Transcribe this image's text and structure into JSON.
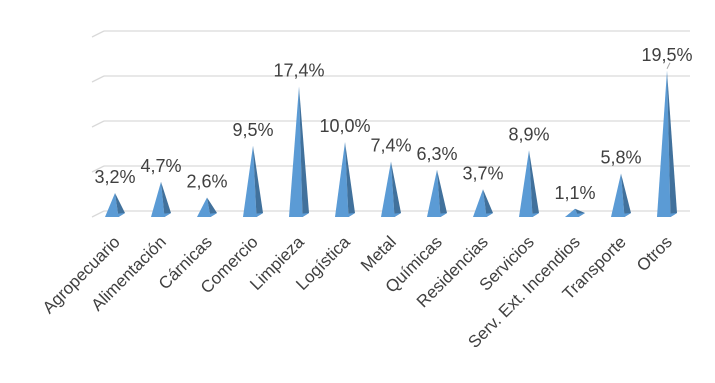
{
  "chart_data": {
    "type": "bar",
    "title": "",
    "xlabel": "",
    "ylabel": "",
    "categories": [
      "Agropecuario",
      "Alimentación",
      "Cárnicas",
      "Comercio",
      "Limpieza",
      "Logística",
      "Metal",
      "Químicas",
      "Residencias",
      "Servicios",
      "Serv. Ext. Incendios",
      "Transporte",
      "Otros"
    ],
    "values": [
      3.2,
      4.7,
      2.6,
      9.5,
      17.4,
      10.0,
      7.4,
      6.3,
      3.7,
      8.9,
      1.1,
      5.8,
      19.5
    ],
    "data_labels": [
      "3,2%",
      "4,7%",
      "2,6%",
      "9,5%",
      "17,4%",
      "10,0%",
      "7,4%",
      "6,3%",
      "3,7%",
      "8,9%",
      "1,1%",
      "5,8%",
      "19,5%"
    ],
    "ylim": [
      0,
      20
    ],
    "grid": true,
    "legend": "none",
    "colors": {
      "front": "#5b9bd5",
      "side": "#41719c",
      "highlight": "#8fbde6"
    }
  }
}
